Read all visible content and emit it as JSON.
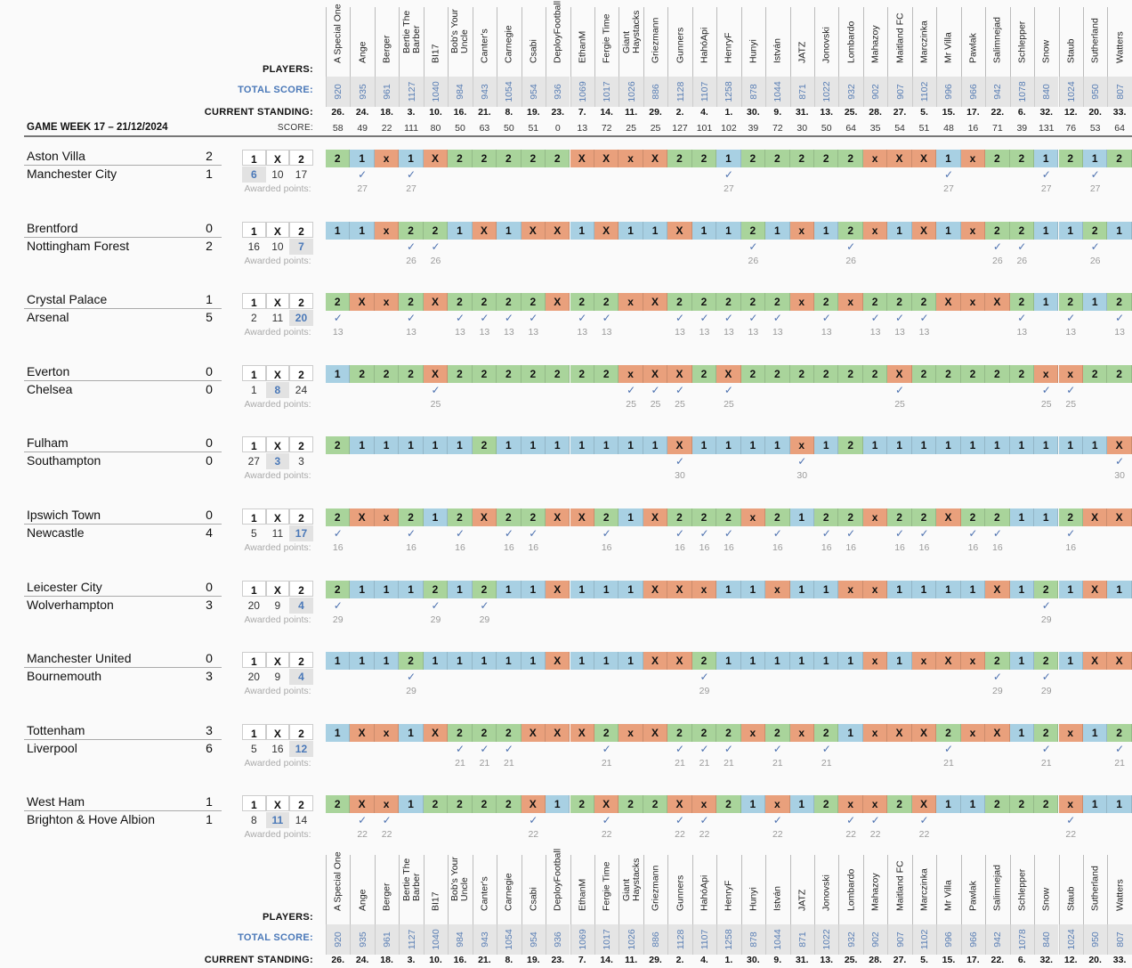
{
  "labels": {
    "players": "PLAYERS:",
    "total_score": "TOTAL SCORE:",
    "current_standing": "CURRENT STANDING:",
    "score": "SCORE:",
    "awarded_points": "Awarded points:",
    "game_week": "GAME WEEK 17 – 21/12/2024",
    "odds_headers": [
      "1",
      "X",
      "2"
    ],
    "check": "✓"
  },
  "colors": {
    "pick_1": "#a8d0e3",
    "pick_x": "#e9a07c",
    "pick_2": "#a9d49b",
    "total_score_text": "#5a7fb5",
    "check": "#4e72b0"
  },
  "players": [
    {
      "name": "A Special One",
      "total": "920",
      "standing": "26.",
      "score": "58"
    },
    {
      "name": "Ange",
      "total": "935",
      "standing": "24.",
      "score": "49"
    },
    {
      "name": "Berger",
      "total": "961",
      "standing": "18.",
      "score": "22"
    },
    {
      "name": "Bertie The\nBarber",
      "total": "1127",
      "standing": "3.",
      "score": "111"
    },
    {
      "name": "BI17",
      "total": "1040",
      "standing": "10.",
      "score": "80"
    },
    {
      "name": "Bob's Your\nUncle",
      "total": "984",
      "standing": "16.",
      "score": "50"
    },
    {
      "name": "Canter's",
      "total": "943",
      "standing": "21.",
      "score": "63"
    },
    {
      "name": "Carnegie",
      "total": "1054",
      "standing": "8.",
      "score": "50"
    },
    {
      "name": "Csabi",
      "total": "954",
      "standing": "19.",
      "score": "51"
    },
    {
      "name": "DeployFootball",
      "total": "936",
      "standing": "23.",
      "score": "0"
    },
    {
      "name": "EthanM",
      "total": "1069",
      "standing": "7.",
      "score": "13"
    },
    {
      "name": "Fergie Time",
      "total": "1017",
      "standing": "14.",
      "score": "72"
    },
    {
      "name": "Giant\nHaystacks",
      "total": "1026",
      "standing": "11.",
      "score": "25"
    },
    {
      "name": "Griezmann",
      "total": "886",
      "standing": "29.",
      "score": "25"
    },
    {
      "name": "Gunners",
      "total": "1128",
      "standing": "2.",
      "score": "127"
    },
    {
      "name": "HahóApi",
      "total": "1107",
      "standing": "4.",
      "score": "101"
    },
    {
      "name": "HenryF",
      "total": "1258",
      "standing": "1.",
      "score": "102"
    },
    {
      "name": "Hunyi",
      "total": "878",
      "standing": "30.",
      "score": "39"
    },
    {
      "name": "István",
      "total": "1044",
      "standing": "9.",
      "score": "72"
    },
    {
      "name": "JATZ",
      "total": "871",
      "standing": "31.",
      "score": "30"
    },
    {
      "name": "Jonovski",
      "total": "1022",
      "standing": "13.",
      "score": "50"
    },
    {
      "name": "Lombardo",
      "total": "932",
      "standing": "25.",
      "score": "64"
    },
    {
      "name": "Mahazoy",
      "total": "902",
      "standing": "28.",
      "score": "35"
    },
    {
      "name": "Maitland FC",
      "total": "907",
      "standing": "27.",
      "score": "54"
    },
    {
      "name": "Marczinka",
      "total": "1102",
      "standing": "5.",
      "score": "51"
    },
    {
      "name": "Mr Villa",
      "total": "996",
      "standing": "15.",
      "score": "48"
    },
    {
      "name": "Pawlak",
      "total": "966",
      "standing": "17.",
      "score": "16"
    },
    {
      "name": "Salimnejad",
      "total": "942",
      "standing": "22.",
      "score": "71"
    },
    {
      "name": "Schlepper",
      "total": "1078",
      "standing": "6.",
      "score": "39"
    },
    {
      "name": "Snow",
      "total": "840",
      "standing": "32.",
      "score": "131"
    },
    {
      "name": "Staub",
      "total": "1024",
      "standing": "12.",
      "score": "76"
    },
    {
      "name": "Sutherland",
      "total": "950",
      "standing": "20.",
      "score": "53"
    },
    {
      "name": "Watters",
      "total": "807",
      "standing": "33.",
      "score": "64"
    }
  ],
  "matches": [
    {
      "home": "Aston Villa",
      "away": "Manchester City",
      "home_goals": "2",
      "away_goals": "1",
      "result": "1",
      "odds": [
        "6",
        "10",
        "17"
      ],
      "points": "27",
      "picks": [
        "2",
        "1",
        "x",
        "1",
        "X",
        "2",
        "2",
        "2",
        "2",
        "2",
        "X",
        "X",
        "x",
        "X",
        "2",
        "2",
        "1",
        "2",
        "2",
        "2",
        "2",
        "2",
        "x",
        "X",
        "X",
        "1",
        "x",
        "2",
        "2",
        "1",
        "2",
        "1",
        "2"
      ]
    },
    {
      "home": "Brentford",
      "away": "Nottingham Forest",
      "home_goals": "0",
      "away_goals": "2",
      "result": "2",
      "odds": [
        "16",
        "10",
        "7"
      ],
      "points": "26",
      "picks": [
        "1",
        "1",
        "x",
        "2",
        "2",
        "1",
        "X",
        "1",
        "X",
        "X",
        "1",
        "X",
        "1",
        "1",
        "X",
        "1",
        "1",
        "2",
        "1",
        "x",
        "1",
        "2",
        "x",
        "1",
        "X",
        "1",
        "x",
        "2",
        "2",
        "1",
        "1",
        "2",
        "1"
      ]
    },
    {
      "home": "Crystal Palace",
      "away": "Arsenal",
      "home_goals": "1",
      "away_goals": "5",
      "result": "2",
      "odds": [
        "2",
        "11",
        "20"
      ],
      "points": "13",
      "picks": [
        "2",
        "X",
        "x",
        "2",
        "X",
        "2",
        "2",
        "2",
        "2",
        "X",
        "2",
        "2",
        "x",
        "X",
        "2",
        "2",
        "2",
        "2",
        "2",
        "x",
        "2",
        "x",
        "2",
        "2",
        "2",
        "X",
        "x",
        "X",
        "2",
        "1",
        "2",
        "1",
        "2"
      ]
    },
    {
      "home": "Everton",
      "away": "Chelsea",
      "home_goals": "0",
      "away_goals": "0",
      "result": "X",
      "odds": [
        "1",
        "8",
        "24"
      ],
      "points": "25",
      "picks": [
        "1",
        "2",
        "2",
        "2",
        "X",
        "2",
        "2",
        "2",
        "2",
        "2",
        "2",
        "2",
        "x",
        "X",
        "X",
        "2",
        "X",
        "2",
        "2",
        "2",
        "2",
        "2",
        "2",
        "X",
        "2",
        "2",
        "2",
        "2",
        "2",
        "x",
        "x",
        "2",
        "2"
      ]
    },
    {
      "home": "Fulham",
      "away": "Southampton",
      "home_goals": "0",
      "away_goals": "0",
      "result": "X",
      "odds": [
        "27",
        "3",
        "3"
      ],
      "points": "30",
      "picks": [
        "2",
        "1",
        "1",
        "1",
        "1",
        "1",
        "2",
        "1",
        "1",
        "1",
        "1",
        "1",
        "1",
        "1",
        "X",
        "1",
        "1",
        "1",
        "1",
        "x",
        "1",
        "2",
        "1",
        "1",
        "1",
        "1",
        "1",
        "1",
        "1",
        "1",
        "1",
        "1",
        "X"
      ]
    },
    {
      "home": "Ipswich Town",
      "away": "Newcastle",
      "home_goals": "0",
      "away_goals": "4",
      "result": "2",
      "odds": [
        "5",
        "11",
        "17"
      ],
      "points": "16",
      "picks": [
        "2",
        "X",
        "x",
        "2",
        "1",
        "2",
        "X",
        "2",
        "2",
        "X",
        "X",
        "2",
        "1",
        "X",
        "2",
        "2",
        "2",
        "x",
        "2",
        "1",
        "2",
        "2",
        "x",
        "2",
        "2",
        "X",
        "2",
        "2",
        "1",
        "1",
        "2",
        "X",
        "X"
      ]
    },
    {
      "home": "Leicester City",
      "away": "Wolverhampton",
      "home_goals": "0",
      "away_goals": "3",
      "result": "2",
      "odds": [
        "20",
        "9",
        "4"
      ],
      "points": "29",
      "picks": [
        "2",
        "1",
        "1",
        "1",
        "2",
        "1",
        "2",
        "1",
        "1",
        "X",
        "1",
        "1",
        "1",
        "X",
        "X",
        "x",
        "1",
        "1",
        "x",
        "1",
        "1",
        "x",
        "x",
        "1",
        "1",
        "1",
        "1",
        "X",
        "1",
        "2",
        "1",
        "X",
        "1"
      ]
    },
    {
      "home": "Manchester United",
      "away": "Bournemouth",
      "home_goals": "0",
      "away_goals": "3",
      "result": "2",
      "odds": [
        "20",
        "9",
        "4"
      ],
      "points": "29",
      "picks": [
        "1",
        "1",
        "1",
        "2",
        "1",
        "1",
        "1",
        "1",
        "1",
        "X",
        "1",
        "1",
        "1",
        "X",
        "X",
        "2",
        "1",
        "1",
        "1",
        "1",
        "1",
        "1",
        "x",
        "1",
        "x",
        "X",
        "x",
        "2",
        "1",
        "2",
        "1",
        "X",
        "X"
      ]
    },
    {
      "home": "Tottenham",
      "away": "Liverpool",
      "home_goals": "3",
      "away_goals": "6",
      "result": "2",
      "odds": [
        "5",
        "16",
        "12"
      ],
      "points": "21",
      "picks": [
        "1",
        "X",
        "x",
        "1",
        "X",
        "2",
        "2",
        "2",
        "X",
        "X",
        "X",
        "2",
        "x",
        "X",
        "2",
        "2",
        "2",
        "x",
        "2",
        "x",
        "2",
        "1",
        "x",
        "X",
        "X",
        "2",
        "x",
        "X",
        "1",
        "2",
        "x",
        "1",
        "2"
      ]
    },
    {
      "home": "West Ham",
      "away": "Brighton & Hove Albion",
      "home_goals": "1",
      "away_goals": "1",
      "result": "X",
      "odds": [
        "8",
        "11",
        "14"
      ],
      "points": "22",
      "picks": [
        "2",
        "X",
        "x",
        "1",
        "2",
        "2",
        "2",
        "2",
        "X",
        "1",
        "2",
        "X",
        "2",
        "2",
        "X",
        "x",
        "2",
        "1",
        "x",
        "1",
        "2",
        "x",
        "x",
        "2",
        "X",
        "1",
        "1",
        "2",
        "2",
        "2",
        "x",
        "1",
        "1"
      ]
    }
  ]
}
